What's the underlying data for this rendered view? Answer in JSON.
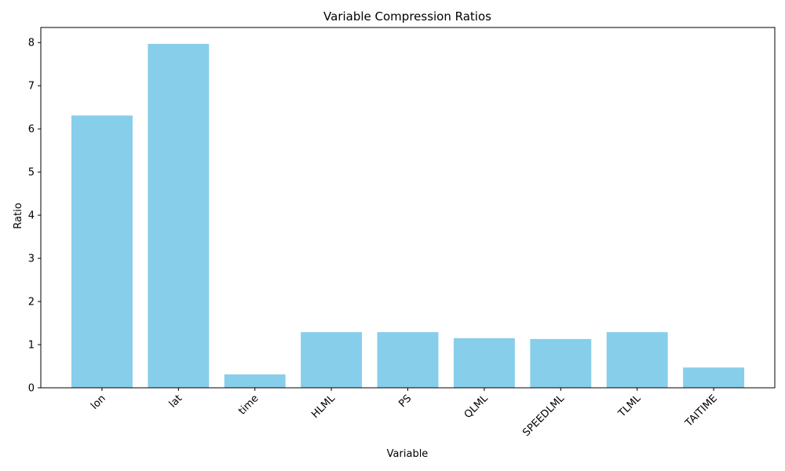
{
  "chart_data": {
    "type": "bar",
    "title": "Variable Compression Ratios",
    "xlabel": "Variable",
    "ylabel": "Ratio",
    "categories": [
      "lon",
      "lat",
      "time",
      "HLML",
      "PS",
      "QLML",
      "SPEEDLML",
      "TLML",
      "TAITIME"
    ],
    "values": [
      6.31,
      7.97,
      0.31,
      1.29,
      1.29,
      1.15,
      1.13,
      1.29,
      0.47
    ],
    "ylim": [
      0,
      8.35
    ],
    "yticks": [
      0,
      1,
      2,
      3,
      4,
      5,
      6,
      7,
      8
    ],
    "bar_color": "#87CEEB",
    "grid": false,
    "xtick_rotation_deg": 45
  }
}
